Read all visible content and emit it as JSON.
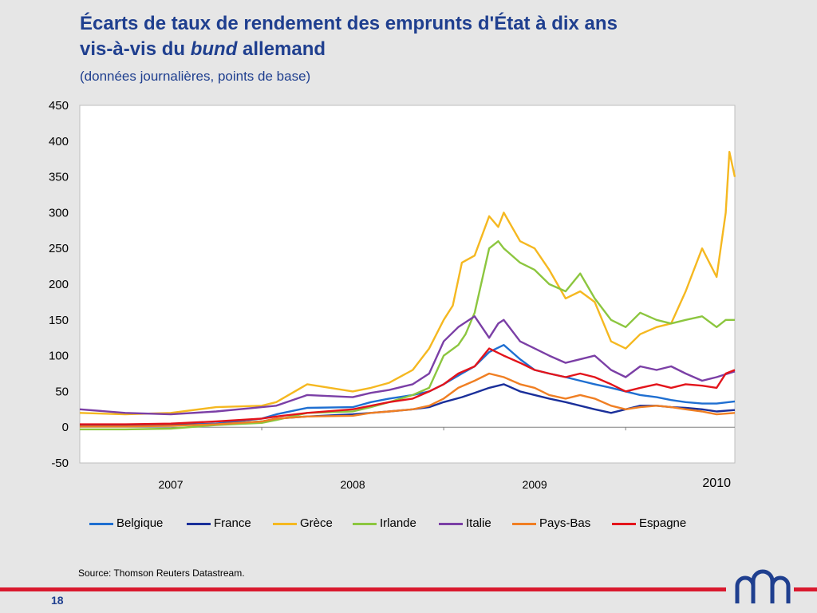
{
  "title_part1": "Écarts de taux de rendement des emprunts d'État à dix ans",
  "title_part2": "vis-à-vis du ",
  "title_italic": "bund",
  "title_part3": " allemand",
  "subtitle": "(données journalières, points de base)",
  "source": "Source: Thomson Reuters Datastream.",
  "page_number": "18",
  "chart_data": {
    "type": "line",
    "title": "Écarts de taux de rendement des emprunts d'État à dix ans vis-à-vis du bund allemand",
    "subtitle": "(données journalières, points de base)",
    "ylim": [
      -50,
      450
    ],
    "yticks": [
      -50,
      0,
      50,
      100,
      150,
      200,
      250,
      300,
      350,
      400,
      450
    ],
    "xlim": [
      2006.5,
      2010.1
    ],
    "xtick_labels": [
      "2007",
      "2008",
      "2009",
      "2010"
    ],
    "xtick_label_positions": [
      2007.0,
      2008.0,
      2009.0,
      2010.0
    ],
    "xgrid_positions": [
      2007.5,
      2008.5,
      2009.5
    ],
    "grid": "none",
    "legend_position": "bottom",
    "series": [
      {
        "name": "Belgique",
        "color": "#1f6fd1",
        "x": [
          2006.5,
          2006.75,
          2007.0,
          2007.25,
          2007.5,
          2007.58,
          2007.75,
          2008.0,
          2008.1,
          2008.2,
          2008.33,
          2008.42,
          2008.5,
          2008.6,
          2008.67,
          2008.75,
          2008.83,
          2008.92,
          2009.0,
          2009.08,
          2009.17,
          2009.25,
          2009.33,
          2009.42,
          2009.5,
          2009.58,
          2009.67,
          2009.75,
          2009.83,
          2009.92,
          2010.0,
          2010.1
        ],
        "y": [
          3,
          3,
          3,
          5,
          12,
          18,
          27,
          28,
          35,
          40,
          45,
          50,
          60,
          75,
          85,
          105,
          115,
          95,
          80,
          75,
          70,
          65,
          60,
          55,
          50,
          45,
          42,
          38,
          35,
          33,
          33,
          36
        ]
      },
      {
        "name": "France",
        "color": "#1a2f9a",
        "x": [
          2006.5,
          2006.75,
          2007.0,
          2007.25,
          2007.5,
          2007.58,
          2007.75,
          2008.0,
          2008.1,
          2008.2,
          2008.33,
          2008.42,
          2008.5,
          2008.6,
          2008.67,
          2008.75,
          2008.83,
          2008.92,
          2009.0,
          2009.08,
          2009.17,
          2009.25,
          2009.33,
          2009.42,
          2009.5,
          2009.58,
          2009.67,
          2009.75,
          2009.83,
          2009.92,
          2010.0,
          2010.1
        ],
        "y": [
          2,
          2,
          3,
          4,
          8,
          12,
          15,
          18,
          20,
          22,
          25,
          28,
          35,
          42,
          48,
          55,
          60,
          50,
          45,
          40,
          35,
          30,
          25,
          20,
          25,
          30,
          30,
          28,
          27,
          25,
          22,
          24
        ]
      },
      {
        "name": "Grèce",
        "color": "#f5b820",
        "x": [
          2006.5,
          2006.75,
          2007.0,
          2007.25,
          2007.5,
          2007.58,
          2007.75,
          2008.0,
          2008.1,
          2008.2,
          2008.33,
          2008.42,
          2008.5,
          2008.55,
          2008.6,
          2008.67,
          2008.75,
          2008.8,
          2008.83,
          2008.92,
          2009.0,
          2009.08,
          2009.17,
          2009.25,
          2009.33,
          2009.42,
          2009.5,
          2009.58,
          2009.67,
          2009.75,
          2009.83,
          2009.92,
          2010.0,
          2010.05,
          2010.07,
          2010.1
        ],
        "y": [
          20,
          18,
          20,
          28,
          30,
          35,
          60,
          50,
          55,
          62,
          80,
          110,
          150,
          170,
          230,
          240,
          295,
          280,
          300,
          260,
          250,
          220,
          180,
          190,
          175,
          120,
          110,
          130,
          140,
          145,
          190,
          250,
          210,
          300,
          385,
          350
        ]
      },
      {
        "name": "Irlande",
        "color": "#8cc63f",
        "x": [
          2006.5,
          2006.75,
          2007.0,
          2007.25,
          2007.5,
          2007.58,
          2007.75,
          2008.0,
          2008.1,
          2008.2,
          2008.33,
          2008.42,
          2008.5,
          2008.58,
          2008.62,
          2008.67,
          2008.75,
          2008.8,
          2008.83,
          2008.92,
          2009.0,
          2009.08,
          2009.17,
          2009.25,
          2009.33,
          2009.42,
          2009.5,
          2009.58,
          2009.67,
          2009.75,
          2009.83,
          2009.92,
          2010.0,
          2010.05,
          2010.1
        ],
        "y": [
          -3,
          -3,
          -2,
          3,
          6,
          10,
          20,
          22,
          28,
          35,
          45,
          55,
          100,
          115,
          130,
          160,
          250,
          260,
          250,
          230,
          220,
          200,
          190,
          215,
          180,
          150,
          140,
          160,
          150,
          145,
          150,
          155,
          140,
          150,
          150
        ]
      },
      {
        "name": "Italie",
        "color": "#7b3fa6",
        "x": [
          2006.5,
          2006.75,
          2007.0,
          2007.25,
          2007.5,
          2007.58,
          2007.75,
          2008.0,
          2008.1,
          2008.2,
          2008.33,
          2008.42,
          2008.5,
          2008.58,
          2008.67,
          2008.75,
          2008.8,
          2008.83,
          2008.92,
          2009.0,
          2009.08,
          2009.17,
          2009.25,
          2009.33,
          2009.42,
          2009.5,
          2009.58,
          2009.67,
          2009.75,
          2009.83,
          2009.92,
          2010.0,
          2010.1
        ],
        "y": [
          25,
          20,
          18,
          22,
          28,
          30,
          45,
          42,
          48,
          52,
          60,
          75,
          120,
          140,
          155,
          125,
          145,
          150,
          120,
          110,
          100,
          90,
          95,
          100,
          80,
          70,
          85,
          80,
          85,
          75,
          65,
          70,
          78
        ]
      },
      {
        "name": "Pays-Bas",
        "color": "#f07f23",
        "x": [
          2006.5,
          2006.75,
          2007.0,
          2007.25,
          2007.5,
          2007.58,
          2007.75,
          2008.0,
          2008.1,
          2008.2,
          2008.33,
          2008.42,
          2008.5,
          2008.58,
          2008.67,
          2008.75,
          2008.83,
          2008.92,
          2009.0,
          2009.08,
          2009.17,
          2009.25,
          2009.33,
          2009.42,
          2009.5,
          2009.58,
          2009.67,
          2009.75,
          2009.83,
          2009.92,
          2010.0,
          2010.1
        ],
        "y": [
          1,
          1,
          2,
          4,
          8,
          12,
          15,
          16,
          20,
          22,
          25,
          30,
          40,
          55,
          65,
          75,
          70,
          60,
          55,
          45,
          40,
          45,
          40,
          30,
          25,
          28,
          30,
          28,
          25,
          22,
          18,
          20
        ]
      },
      {
        "name": "Espagne",
        "color": "#e3141b",
        "x": [
          2006.5,
          2006.75,
          2007.0,
          2007.25,
          2007.5,
          2007.58,
          2007.75,
          2008.0,
          2008.1,
          2008.2,
          2008.33,
          2008.42,
          2008.5,
          2008.58,
          2008.67,
          2008.75,
          2008.83,
          2008.92,
          2009.0,
          2009.08,
          2009.17,
          2009.25,
          2009.33,
          2009.42,
          2009.5,
          2009.58,
          2009.67,
          2009.75,
          2009.83,
          2009.92,
          2010.0,
          2010.05,
          2010.1
        ],
        "y": [
          4,
          4,
          5,
          8,
          12,
          15,
          20,
          25,
          30,
          35,
          40,
          50,
          60,
          75,
          85,
          110,
          100,
          90,
          80,
          75,
          70,
          75,
          70,
          60,
          50,
          55,
          60,
          55,
          60,
          58,
          55,
          75,
          80
        ]
      }
    ]
  }
}
